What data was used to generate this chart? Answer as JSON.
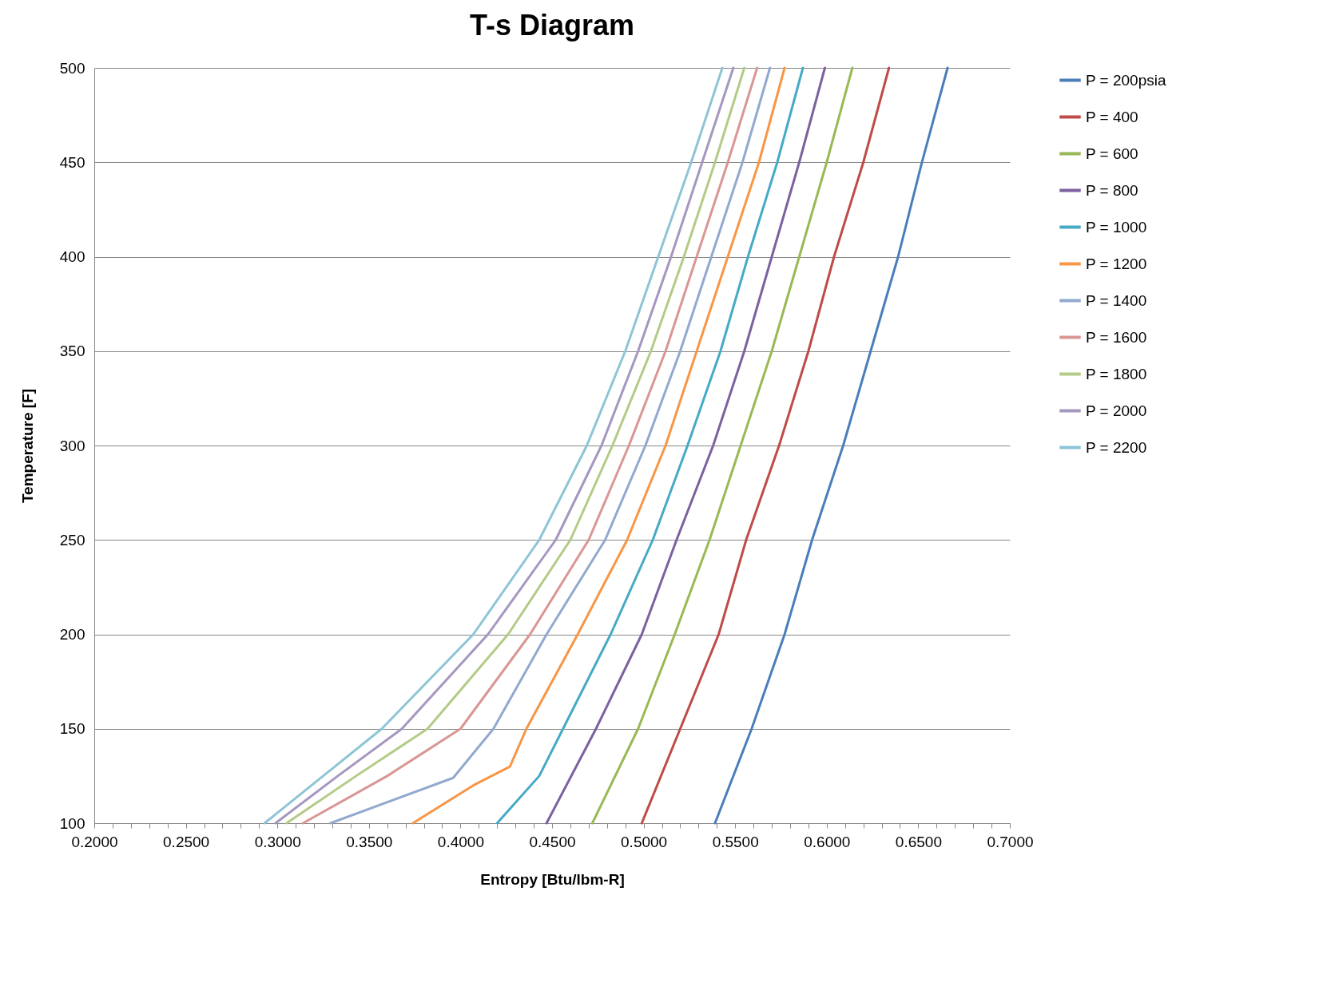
{
  "chart_data": {
    "type": "line",
    "title": "T-s Diagram",
    "xlabel": "Entropy [Btu/lbm-R]",
    "ylabel": "Temperature [F]",
    "xlim": [
      0.2,
      0.7
    ],
    "xticks": [
      {
        "value": 0.2,
        "label": "0.2000"
      },
      {
        "value": 0.21,
        "label": null
      },
      {
        "value": 0.22,
        "label": null
      },
      {
        "value": 0.23,
        "label": null
      },
      {
        "value": 0.24,
        "label": null
      },
      {
        "value": 0.25,
        "label": "0.2500"
      },
      {
        "value": 0.26,
        "label": null
      },
      {
        "value": 0.27,
        "label": null
      },
      {
        "value": 0.28,
        "label": null
      },
      {
        "value": 0.29,
        "label": null
      },
      {
        "value": 0.3,
        "label": "0.3000"
      },
      {
        "value": 0.31,
        "label": null
      },
      {
        "value": 0.32,
        "label": null
      },
      {
        "value": 0.33,
        "label": null
      },
      {
        "value": 0.34,
        "label": null
      },
      {
        "value": 0.35,
        "label": "0.3500"
      },
      {
        "value": 0.36,
        "label": null
      },
      {
        "value": 0.37,
        "label": null
      },
      {
        "value": 0.38,
        "label": null
      },
      {
        "value": 0.39,
        "label": null
      },
      {
        "value": 0.4,
        "label": "0.4000"
      },
      {
        "value": 0.41,
        "label": null
      },
      {
        "value": 0.42,
        "label": null
      },
      {
        "value": 0.43,
        "label": null
      },
      {
        "value": 0.44,
        "label": null
      },
      {
        "value": 0.45,
        "label": "0.4500"
      },
      {
        "value": 0.46,
        "label": null
      },
      {
        "value": 0.47,
        "label": null
      },
      {
        "value": 0.48,
        "label": null
      },
      {
        "value": 0.49,
        "label": null
      },
      {
        "value": 0.5,
        "label": "0.5000"
      },
      {
        "value": 0.51,
        "label": null
      },
      {
        "value": 0.52,
        "label": null
      },
      {
        "value": 0.53,
        "label": null
      },
      {
        "value": 0.54,
        "label": null
      },
      {
        "value": 0.55,
        "label": "0.5500"
      },
      {
        "value": 0.56,
        "label": null
      },
      {
        "value": 0.57,
        "label": null
      },
      {
        "value": 0.58,
        "label": null
      },
      {
        "value": 0.59,
        "label": null
      },
      {
        "value": 0.6,
        "label": "0.6000"
      },
      {
        "value": 0.61,
        "label": null
      },
      {
        "value": 0.62,
        "label": null
      },
      {
        "value": 0.63,
        "label": null
      },
      {
        "value": 0.64,
        "label": null
      },
      {
        "value": 0.65,
        "label": "0.6500"
      },
      {
        "value": 0.66,
        "label": null
      },
      {
        "value": 0.67,
        "label": null
      },
      {
        "value": 0.68,
        "label": null
      },
      {
        "value": 0.69,
        "label": null
      },
      {
        "value": 0.7,
        "label": "0.7000"
      }
    ],
    "ylim": [
      100,
      500
    ],
    "yticks": [
      100,
      150,
      200,
      250,
      300,
      350,
      400,
      450,
      500
    ],
    "grid": "y",
    "legend": "right",
    "marker": "none",
    "line_style": "solid",
    "series": [
      {
        "name": "P = 200psia",
        "color": "#4a7ebb",
        "x": [
          0.539,
          0.559,
          0.577,
          0.592,
          0.609,
          0.624,
          0.639,
          0.652,
          0.666
        ],
        "values": [
          100,
          150,
          200,
          250,
          300,
          350,
          400,
          450,
          500
        ]
      },
      {
        "name": "P = 400",
        "color": "#be4b48",
        "x": [
          0.499,
          0.52,
          0.541,
          0.556,
          0.574,
          0.59,
          0.604,
          0.62,
          0.634
        ],
        "values": [
          100,
          150,
          200,
          250,
          300,
          350,
          400,
          450,
          500
        ]
      },
      {
        "name": "P = 600",
        "color": "#98b954",
        "x": [
          0.472,
          0.497,
          0.517,
          0.536,
          0.553,
          0.57,
          0.585,
          0.6,
          0.614
        ],
        "values": [
          100,
          150,
          200,
          250,
          300,
          350,
          400,
          450,
          500
        ]
      },
      {
        "name": "P = 800",
        "color": "#7d60a0",
        "x": [
          0.447,
          0.474,
          0.499,
          0.518,
          0.538,
          0.555,
          0.57,
          0.585,
          0.599
        ],
        "values": [
          100,
          150,
          200,
          250,
          300,
          350,
          400,
          450,
          500
        ]
      },
      {
        "name": "P = 1000",
        "color": "#46aac5",
        "x": [
          0.42,
          0.443,
          0.456,
          0.482,
          0.505,
          0.524,
          0.542,
          0.557,
          0.573,
          0.587
        ],
        "values": [
          100,
          125,
          150,
          200,
          250,
          300,
          350,
          400,
          450,
          500
        ]
      },
      {
        "name": "P = 1200",
        "color": "#f79646",
        "x": [
          0.374,
          0.407,
          0.427,
          0.436,
          0.464,
          0.491,
          0.512,
          0.529,
          0.546,
          0.563,
          0.577
        ],
        "values": [
          100,
          120,
          130,
          150,
          200,
          250,
          300,
          350,
          400,
          450,
          500
        ]
      },
      {
        "name": "P = 1400",
        "color": "#92a9cf",
        "x": [
          0.329,
          0.396,
          0.418,
          0.447,
          0.479,
          0.501,
          0.52,
          0.537,
          0.554,
          0.569
        ],
        "values": [
          100,
          124,
          150,
          200,
          250,
          300,
          350,
          400,
          450,
          500
        ]
      },
      {
        "name": "P = 1600",
        "color": "#d99694",
        "x": [
          0.314,
          0.36,
          0.4,
          0.438,
          0.47,
          0.492,
          0.512,
          0.529,
          0.546,
          0.562
        ],
        "values": [
          100,
          125,
          150,
          200,
          250,
          300,
          350,
          400,
          450,
          500
        ]
      },
      {
        "name": "P = 1800",
        "color": "#b3cb86",
        "x": [
          0.305,
          0.343,
          0.382,
          0.426,
          0.46,
          0.483,
          0.504,
          0.522,
          0.539,
          0.555
        ],
        "values": [
          100,
          125,
          150,
          200,
          250,
          300,
          350,
          400,
          450,
          500
        ]
      },
      {
        "name": "P = 2000",
        "color": "#a597bf",
        "x": [
          0.299,
          0.333,
          0.368,
          0.415,
          0.452,
          0.477,
          0.497,
          0.515,
          0.532,
          0.549
        ],
        "values": [
          100,
          125,
          150,
          200,
          250,
          300,
          350,
          400,
          450,
          500
        ]
      },
      {
        "name": "P = 2200",
        "color": "#8ec5d6",
        "x": [
          0.293,
          0.325,
          0.357,
          0.407,
          0.443,
          0.469,
          0.49,
          0.508,
          0.526,
          0.543
        ],
        "values": [
          100,
          125,
          150,
          200,
          250,
          300,
          350,
          400,
          450,
          500
        ]
      }
    ]
  }
}
